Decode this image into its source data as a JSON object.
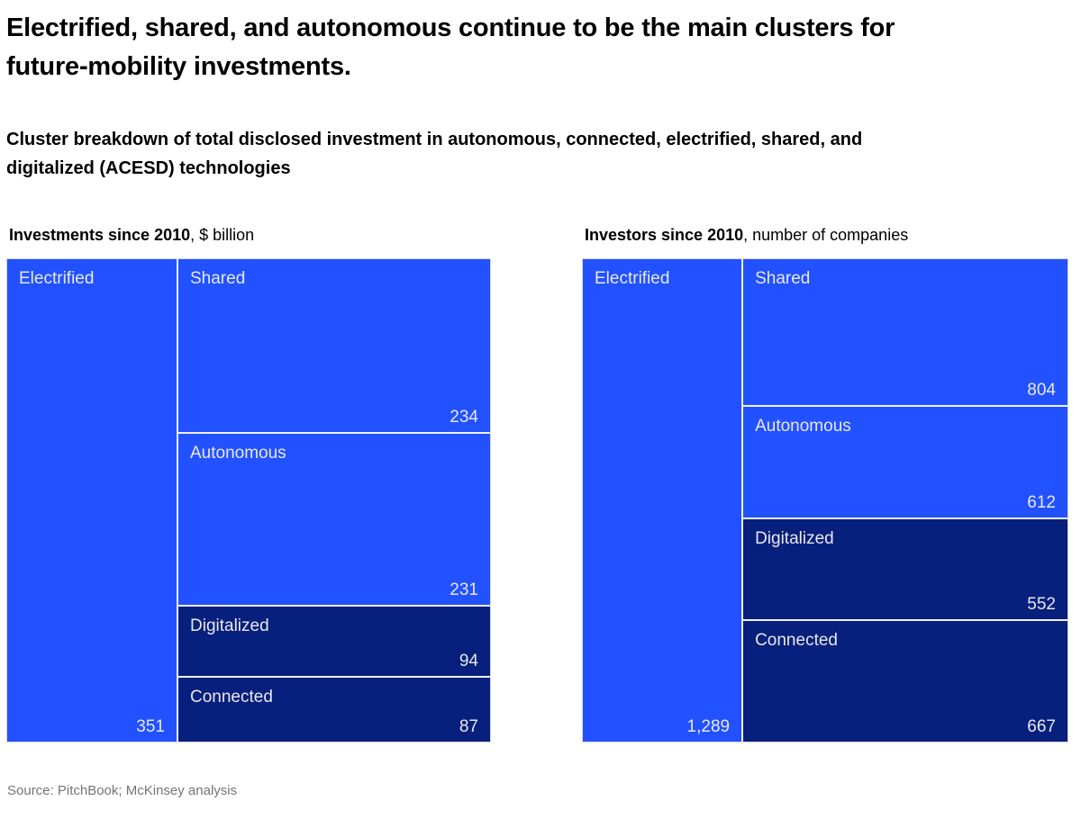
{
  "page": {
    "title_lines": [
      "Electrified, shared, and autonomous continue to be the main clusters for",
      "future-mobility investments."
    ],
    "subtitle_lines": [
      "Cluster breakdown of total disclosed investment in autonomous, connected, electrified, shared, and",
      "digitalized (ACESD) technologies"
    ],
    "source": "Source: PitchBook; McKinsey analysis"
  },
  "colors": {
    "bright_blue": "#2251FF",
    "dark_navy": "#071F7D",
    "label_text": "#E8E8E8",
    "divider": "#F1F2F6",
    "source_gray": "#747474"
  },
  "chart_data": [
    {
      "type": "treemap",
      "title_bold": "Investments since 2010",
      "title_rest": ", $ billion",
      "left_segment": {
        "label": "Electrified",
        "value": 351,
        "display": "351",
        "color": "#2251FF"
      },
      "right_segments": [
        {
          "label": "Shared",
          "value": 234,
          "display": "234",
          "color": "#2251FF"
        },
        {
          "label": "Autonomous",
          "value": 231,
          "display": "231",
          "color": "#2251FF"
        },
        {
          "label": "Digitalized",
          "value": 94,
          "display": "94",
          "color": "#071F7D"
        },
        {
          "label": "Connected",
          "value": 87,
          "display": "87",
          "color": "#071F7D"
        }
      ]
    },
    {
      "type": "treemap",
      "title_bold": "Investors since 2010",
      "title_rest": ", number of companies",
      "left_segment": {
        "label": "Electrified",
        "value": 1289,
        "display": "1,289",
        "color": "#2251FF"
      },
      "right_segments": [
        {
          "label": "Shared",
          "value": 804,
          "display": "804",
          "color": "#2251FF"
        },
        {
          "label": "Autonomous",
          "value": 612,
          "display": "612",
          "color": "#2251FF"
        },
        {
          "label": "Digitalized",
          "value": 552,
          "display": "552",
          "color": "#071F7D"
        },
        {
          "label": "Connected",
          "value": 667,
          "display": "667",
          "color": "#071F7D"
        }
      ]
    }
  ]
}
